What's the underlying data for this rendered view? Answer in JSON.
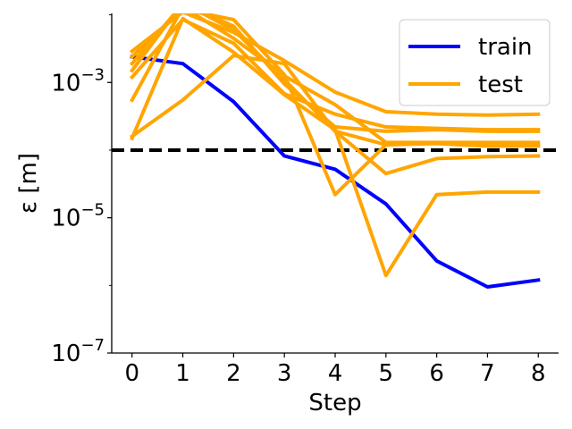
{
  "chart_data": {
    "type": "line",
    "xlabel": "Step",
    "ylabel": "ε [m]",
    "x_ticks": [
      "0",
      "1",
      "2",
      "3",
      "4",
      "5",
      "6",
      "7",
      "8"
    ],
    "xlim": [
      -0.4,
      8.4
    ],
    "ylim": [
      1e-07,
      0.0105
    ],
    "yscale": "log",
    "y_ticks": [
      {
        "value": 1e-07,
        "base": "10",
        "exp": "−7"
      },
      {
        "value": 1e-05,
        "base": "10",
        "exp": "−5"
      },
      {
        "value": 0.001,
        "base": "10",
        "exp": "−3"
      }
    ],
    "threshold": {
      "value": 0.0001,
      "style": "dashed",
      "color": "#000000"
    },
    "legend": {
      "position": "top-right",
      "entries": [
        "train",
        "test"
      ]
    },
    "colors": {
      "train": "#0000ff",
      "test": "#ffa500"
    },
    "series": [
      {
        "name": "train",
        "color": "#0000ff",
        "x": [
          0,
          1,
          2,
          3,
          4,
          5,
          6,
          7,
          8
        ],
        "values": [
          0.0024,
          0.0019,
          0.00052,
          8.2e-05,
          5.2e-05,
          1.6e-05,
          2.3e-06,
          9.5e-07,
          1.2e-06
        ]
      },
      {
        "name": "test",
        "color": "#ffa500",
        "x": [
          0,
          1,
          2,
          3,
          4,
          5,
          6,
          7,
          8
        ],
        "values": [
          0.00016,
          0.00055,
          0.0025,
          0.0019,
          0.00019,
          0.00012,
          0.000125,
          0.000115,
          0.000115
        ]
      },
      {
        "name": "test",
        "color": "#ffa500",
        "x": [
          0,
          1,
          2,
          3,
          4,
          5,
          6,
          7,
          8
        ],
        "values": [
          0.0024,
          0.012,
          0.0085,
          0.0013,
          2.2e-05,
          0.00012,
          0.00013,
          0.00012,
          0.00012
        ]
      },
      {
        "name": "test",
        "color": "#ffa500",
        "x": [
          0,
          1,
          2,
          3,
          4,
          5,
          6,
          7,
          8
        ],
        "values": [
          0.0015,
          0.015,
          0.006,
          0.0011,
          0.00019,
          4.5e-05,
          7.5e-05,
          8e-05,
          8.2e-05
        ]
      },
      {
        "name": "test",
        "color": "#ffa500",
        "x": [
          0,
          1,
          2,
          3,
          4,
          5,
          6,
          7,
          8
        ],
        "values": [
          0.0029,
          0.011,
          0.0055,
          0.0021,
          0.00072,
          0.00037,
          0.00034,
          0.00033,
          0.00034
        ]
      },
      {
        "name": "test",
        "color": "#ffa500",
        "x": [
          0,
          1,
          2,
          3,
          4,
          5,
          6,
          7,
          8
        ],
        "values": [
          0.0012,
          0.0085,
          0.0038,
          0.00068,
          0.00034,
          0.00022,
          0.00021,
          0.0002,
          0.0002
        ]
      },
      {
        "name": "test",
        "color": "#ffa500",
        "x": [
          0,
          1,
          2,
          3,
          4,
          5,
          6,
          7,
          8
        ],
        "values": [
          0.00015,
          0.0088,
          0.0028,
          0.00066,
          0.0002,
          1.4e-06,
          2.2e-05,
          2.4e-05,
          2.4e-05
        ]
      },
      {
        "name": "test",
        "color": "#ffa500",
        "x": [
          0,
          1,
          2,
          3,
          4,
          5,
          6,
          7,
          8
        ],
        "values": [
          0.00055,
          0.013,
          0.0045,
          0.00125,
          0.00047,
          0.00013,
          0.00013,
          0.00013,
          0.00013
        ]
      },
      {
        "name": "test",
        "color": "#ffa500",
        "x": [
          0,
          1,
          2,
          3,
          4,
          5,
          6,
          7,
          8
        ],
        "values": [
          0.0019,
          0.0145,
          0.0068,
          0.00095,
          0.00022,
          0.00019,
          0.0002,
          0.00019,
          0.00019
        ]
      }
    ]
  }
}
